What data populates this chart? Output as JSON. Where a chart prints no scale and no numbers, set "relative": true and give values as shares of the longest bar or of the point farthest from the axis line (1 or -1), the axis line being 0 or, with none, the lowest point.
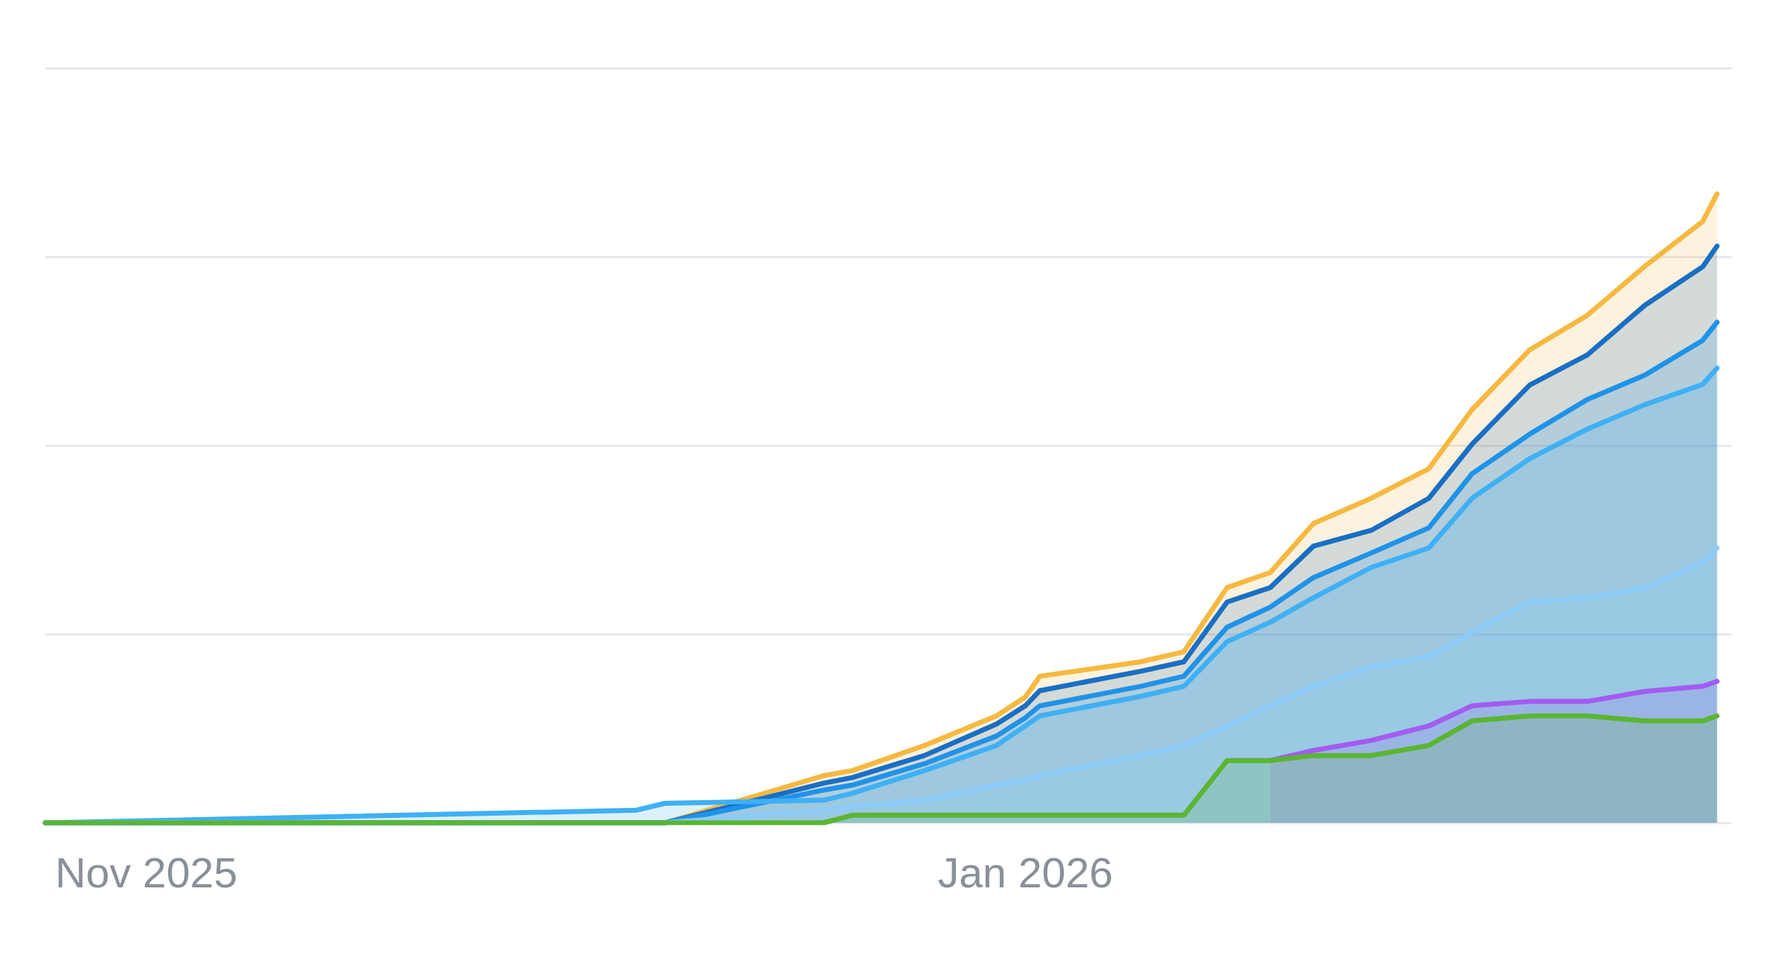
{
  "chart_data": {
    "type": "area",
    "relative": true,
    "grid": "y",
    "x": [
      "2025-10-25",
      "2025-12-05",
      "2025-12-07",
      "2025-12-18",
      "2025-12-20",
      "2025-12-25",
      "2025-12-30",
      "2026-01-01",
      "2026-01-02",
      "2026-01-09",
      "2026-01-12",
      "2026-01-15",
      "2026-01-18",
      "2026-01-21",
      "2026-01-25",
      "2026-01-29",
      "2026-02-01",
      "2026-02-05",
      "2026-02-09",
      "2026-02-13",
      "2026-02-17",
      "2026-02-18"
    ],
    "xlim": [
      "2025-10-25",
      "2026-02-19"
    ],
    "xticks": [
      {
        "value": "2025-11-01",
        "label": "Nov 2025"
      },
      {
        "value": "2026-01-01",
        "label": "Jan 2026"
      }
    ],
    "series": [
      {
        "color": "#f5b942",
        "values": [
          0,
          0,
          0,
          0.075,
          0.083,
          0.123,
          0.17,
          0.2,
          0.233,
          0.256,
          0.272,
          0.374,
          0.398,
          0.476,
          0.516,
          0.563,
          0.657,
          0.752,
          0.807,
          0.885,
          0.956,
          1
        ]
      },
      {
        "color": "#1a6fc4",
        "values": [
          0,
          0,
          0,
          0.063,
          0.072,
          0.107,
          0.157,
          0.186,
          0.21,
          0.241,
          0.256,
          0.351,
          0.374,
          0.44,
          0.465,
          0.516,
          0.602,
          0.696,
          0.744,
          0.823,
          0.884,
          0.917
        ]
      },
      {
        "color": "#1f93e8",
        "values": [
          0,
          0,
          0,
          0.052,
          0.06,
          0.094,
          0.138,
          0.167,
          0.186,
          0.217,
          0.233,
          0.311,
          0.343,
          0.39,
          0.429,
          0.469,
          0.555,
          0.618,
          0.673,
          0.712,
          0.767,
          0.796
        ]
      },
      {
        "color": "#3fb0f5",
        "values": [
          0,
          0.02,
          0.031,
          0.036,
          0.047,
          0.083,
          0.123,
          0.154,
          0.17,
          0.201,
          0.217,
          0.288,
          0.319,
          0.358,
          0.406,
          0.437,
          0.516,
          0.579,
          0.626,
          0.665,
          0.697,
          0.723
        ]
      },
      {
        "color": "#8ccbf7",
        "values": [
          0,
          0,
          0,
          0.02,
          0.025,
          0.036,
          0.06,
          0.068,
          0.075,
          0.107,
          0.123,
          0.154,
          0.186,
          0.217,
          0.248,
          0.264,
          0.303,
          0.351,
          0.358,
          0.374,
          0.414,
          0.437
        ]
      },
      {
        "color": "#a35cf0",
        "values": [
          null,
          null,
          null,
          null,
          null,
          null,
          null,
          null,
          null,
          null,
          null,
          null,
          0.099,
          0.115,
          0.131,
          0.154,
          0.186,
          0.193,
          0.193,
          0.209,
          0.217,
          0.225
        ]
      },
      {
        "color": "#5bb532",
        "values": [
          0,
          0,
          0,
          0,
          0.012,
          0.012,
          0.012,
          0.012,
          0.012,
          0.012,
          0.012,
          0.099,
          0.099,
          0.107,
          0.107,
          0.123,
          0.162,
          0.17,
          0.17,
          0.162,
          0.162,
          0.17
        ]
      }
    ]
  }
}
